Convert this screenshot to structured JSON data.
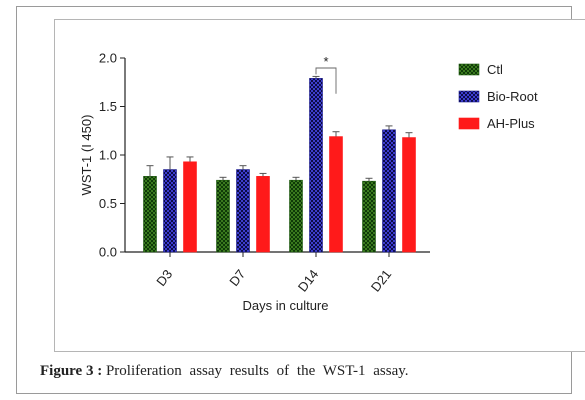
{
  "caption": {
    "label": "Figure 3 :",
    "text": "Proliferation assay results of the WST-1 assay."
  },
  "chart_data": {
    "type": "bar",
    "ylabel": "WST-1 (I 450)",
    "xlabel": "Days in culture",
    "ylim": [
      0,
      2.0
    ],
    "yticks": [
      "0.0",
      "0.5",
      "1.0",
      "1.5",
      "2.0"
    ],
    "categories": [
      "D3",
      "D7",
      "D14",
      "D21"
    ],
    "series": [
      {
        "name": "Ctl",
        "color": "#1f5a12",
        "pattern": "checker-green",
        "values": [
          0.78,
          0.74,
          0.74,
          0.73
        ],
        "errors": [
          0.11,
          0.03,
          0.03,
          0.03
        ]
      },
      {
        "name": "Bio-Root",
        "color": "#1a1a8c",
        "pattern": "checker-blue",
        "values": [
          0.85,
          0.85,
          1.79,
          1.26
        ],
        "errors": [
          0.13,
          0.04,
          0.02,
          0.04
        ]
      },
      {
        "name": "AH-Plus",
        "color": "#ff1a1a",
        "pattern": "solid-red",
        "values": [
          0.93,
          0.78,
          1.19,
          1.18
        ],
        "errors": [
          0.05,
          0.03,
          0.05,
          0.05
        ]
      }
    ],
    "annotations": [
      {
        "text": "*",
        "category": "D14",
        "between": [
          "Bio-Root",
          "AH-Plus"
        ]
      }
    ],
    "legend_position": "right",
    "grid": false
  }
}
